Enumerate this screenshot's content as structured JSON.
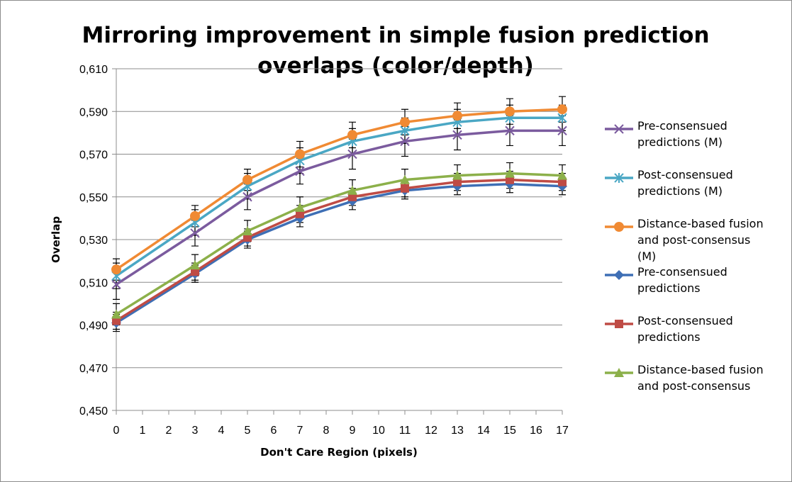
{
  "chart_data": {
    "type": "line",
    "title_lines": [
      "Mirroring improvement in simple fusion prediction",
      "overlaps (color/depth)"
    ],
    "xlabel": "Don't Care Region (pixels)",
    "ylabel": "Overlap",
    "x_ticks": [
      "0",
      "1",
      "2",
      "3",
      "4",
      "5",
      "6",
      "7",
      "8",
      "9",
      "10",
      "11",
      "12",
      "13",
      "14",
      "15",
      "16",
      "17"
    ],
    "y_ticks": [
      "0,450",
      "0,470",
      "0,490",
      "0,510",
      "0,530",
      "0,550",
      "0,570",
      "0,590",
      "0,610"
    ],
    "xlim": [
      0,
      17
    ],
    "ylim": [
      0.45,
      0.61
    ],
    "grid": "horizontal",
    "legend_position": "right",
    "x": [
      0,
      3,
      5,
      7,
      9,
      11,
      13,
      15,
      17
    ],
    "series": [
      {
        "name_lines": [
          "Pre-consensued",
          "predictions (M)"
        ],
        "color": "#7b5b9e",
        "marker": "x",
        "values": [
          0.509,
          0.533,
          0.55,
          0.562,
          0.57,
          0.576,
          0.579,
          0.581,
          0.581
        ],
        "errors": [
          0.007,
          0.006,
          0.006,
          0.006,
          0.007,
          0.007,
          0.007,
          0.007,
          0.007
        ]
      },
      {
        "name_lines": [
          "Post-consensued",
          "predictions (M)"
        ],
        "color": "#4aa7c4",
        "marker": "asterisk",
        "values": [
          0.513,
          0.538,
          0.555,
          0.567,
          0.576,
          0.581,
          0.585,
          0.587,
          0.587
        ],
        "errors": [
          0.006,
          0.006,
          0.006,
          0.006,
          0.006,
          0.006,
          0.006,
          0.006,
          0.006
        ]
      },
      {
        "name_lines": [
          "Distance-based fusion",
          "and post-consensus",
          "(M)"
        ],
        "color": "#f08a33",
        "marker": "circle",
        "values": [
          0.516,
          0.541,
          0.558,
          0.57,
          0.579,
          0.585,
          0.588,
          0.59,
          0.591
        ],
        "errors": [
          0.005,
          0.005,
          0.005,
          0.006,
          0.006,
          0.006,
          0.006,
          0.006,
          0.006
        ]
      },
      {
        "name_lines": [
          "Pre-consensued",
          "predictions"
        ],
        "color": "#3e6fb5",
        "marker": "diamond",
        "values": [
          0.491,
          0.514,
          0.53,
          0.54,
          0.548,
          0.553,
          0.555,
          0.556,
          0.555
        ],
        "errors": [
          0.004,
          0.004,
          0.004,
          0.004,
          0.004,
          0.004,
          0.004,
          0.004,
          0.004
        ]
      },
      {
        "name_lines": [
          "Post-consensued",
          "predictions"
        ],
        "color": "#bf4b45",
        "marker": "square",
        "values": [
          0.492,
          0.515,
          0.531,
          0.542,
          0.55,
          0.554,
          0.557,
          0.558,
          0.557
        ],
        "errors": [
          0.004,
          0.004,
          0.004,
          0.004,
          0.004,
          0.004,
          0.004,
          0.004,
          0.004
        ]
      },
      {
        "name_lines": [
          "Distance-based fusion",
          "and post-consensus"
        ],
        "color": "#8cb04a",
        "marker": "triangle",
        "values": [
          0.495,
          0.518,
          0.534,
          0.545,
          0.553,
          0.558,
          0.56,
          0.561,
          0.56
        ],
        "errors": [
          0.005,
          0.005,
          0.005,
          0.005,
          0.005,
          0.005,
          0.005,
          0.005,
          0.005
        ]
      }
    ]
  }
}
